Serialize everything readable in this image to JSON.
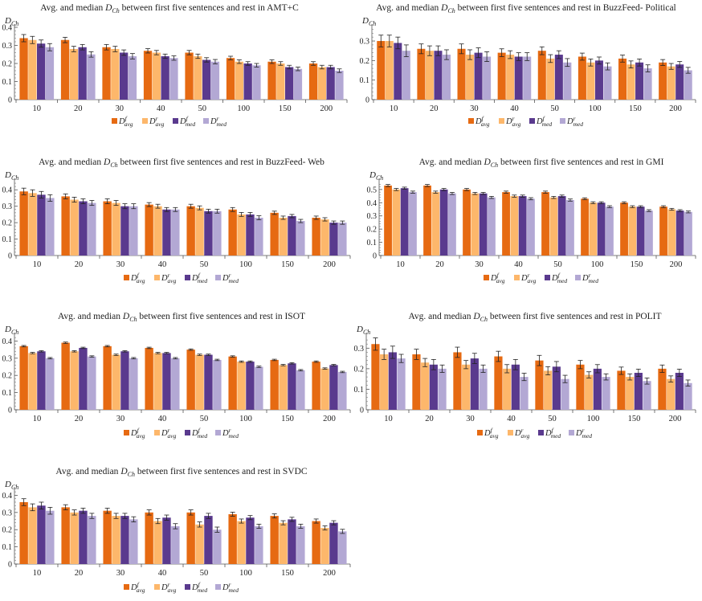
{
  "legend": {
    "labels": [
      {
        "base": "D",
        "sup": "f",
        "sub": "avg"
      },
      {
        "base": "D",
        "sup": "r",
        "sub": "avg"
      },
      {
        "base": "D",
        "sup": "f",
        "sub": "med"
      },
      {
        "base": "D",
        "sup": "r",
        "sub": "med"
      }
    ],
    "colors": [
      "#E66A12",
      "#FDB76B",
      "#5A3A8E",
      "#B3A8D4"
    ]
  },
  "chart_data": [
    {
      "type": "bar",
      "title": "Avg. and median D_Ch between first five sentences and rest in AMT+C",
      "title_parts": {
        "prefix": "Avg. and median ",
        "var": "D",
        "var_sub": "Ch",
        "suffix": " between first five sentences and rest in AMT+C"
      },
      "ylabel": {
        "base": "D",
        "sub": "Ch"
      },
      "categories": [
        "10",
        "20",
        "30",
        "40",
        "50",
        "100",
        "150",
        "200"
      ],
      "yticks": [
        "0",
        "0.1",
        "0.2",
        "0.3",
        "0.4"
      ],
      "ylim": [
        0,
        0.4
      ],
      "series": [
        {
          "name": "D^f_avg",
          "values": [
            0.34,
            0.33,
            0.29,
            0.27,
            0.26,
            0.23,
            0.21,
            0.2
          ],
          "err": [
            0.02,
            0.015,
            0.015,
            0.012,
            0.012,
            0.01,
            0.01,
            0.01
          ]
        },
        {
          "name": "D^r_avg",
          "values": [
            0.33,
            0.28,
            0.28,
            0.26,
            0.24,
            0.21,
            0.2,
            0.18
          ],
          "err": [
            0.02,
            0.015,
            0.015,
            0.012,
            0.012,
            0.01,
            0.01,
            0.01
          ]
        },
        {
          "name": "D^f_med",
          "values": [
            0.31,
            0.29,
            0.26,
            0.24,
            0.22,
            0.2,
            0.18,
            0.18
          ],
          "err": [
            0.02,
            0.015,
            0.015,
            0.012,
            0.012,
            0.01,
            0.01,
            0.01
          ]
        },
        {
          "name": "D^r_med",
          "values": [
            0.29,
            0.25,
            0.24,
            0.23,
            0.21,
            0.19,
            0.17,
            0.16
          ],
          "err": [
            0.02,
            0.015,
            0.015,
            0.012,
            0.012,
            0.01,
            0.01,
            0.01
          ]
        }
      ]
    },
    {
      "type": "bar",
      "title": "Avg. and median D_Ch between first five sentences and rest in BuzzFeed- Political",
      "title_parts": {
        "prefix": "Avg. and median ",
        "var": "D",
        "var_sub": "Ch",
        "suffix": " between first five sentences and rest in BuzzFeed- Political"
      },
      "ylabel": {
        "base": "D",
        "sub": "Ch"
      },
      "categories": [
        "10",
        "20",
        "30",
        "40",
        "50",
        "100",
        "150",
        "200"
      ],
      "yticks": [
        "0",
        "0.1",
        "0.2",
        "0.3"
      ],
      "ylim": [
        0,
        0.37
      ],
      "series": [
        {
          "name": "D^f_avg",
          "values": [
            0.3,
            0.26,
            0.26,
            0.24,
            0.25,
            0.22,
            0.21,
            0.19
          ],
          "err": [
            0.03,
            0.025,
            0.025,
            0.02,
            0.02,
            0.018,
            0.018,
            0.015
          ]
        },
        {
          "name": "D^r_avg",
          "values": [
            0.3,
            0.25,
            0.23,
            0.23,
            0.21,
            0.19,
            0.18,
            0.17
          ],
          "err": [
            0.03,
            0.025,
            0.025,
            0.02,
            0.02,
            0.018,
            0.018,
            0.015
          ]
        },
        {
          "name": "D^f_med",
          "values": [
            0.29,
            0.25,
            0.24,
            0.22,
            0.23,
            0.2,
            0.19,
            0.18
          ],
          "err": [
            0.03,
            0.025,
            0.025,
            0.02,
            0.02,
            0.018,
            0.018,
            0.015
          ]
        },
        {
          "name": "D^r_med",
          "values": [
            0.25,
            0.23,
            0.22,
            0.22,
            0.19,
            0.17,
            0.16,
            0.15
          ],
          "err": [
            0.03,
            0.025,
            0.025,
            0.02,
            0.02,
            0.018,
            0.018,
            0.015
          ]
        }
      ]
    },
    {
      "type": "bar",
      "title": "Avg. and median D_Ch between first five sentences and rest in BuzzFeed- Web",
      "title_parts": {
        "prefix": "Avg. and median ",
        "var": "D",
        "var_sub": "Ch",
        "suffix": " between first five sentences and rest in BuzzFeed- Web"
      },
      "ylabel": {
        "base": "D",
        "sub": "Ch"
      },
      "categories": [
        "10",
        "20",
        "30",
        "40",
        "50",
        "100",
        "150",
        "200"
      ],
      "yticks": [
        "0",
        "0.1",
        "0.2",
        "0.3",
        "0.4"
      ],
      "ylim": [
        0,
        0.45
      ],
      "series": [
        {
          "name": "D^f_avg",
          "values": [
            0.39,
            0.36,
            0.33,
            0.31,
            0.3,
            0.28,
            0.26,
            0.23
          ],
          "err": [
            0.02,
            0.015,
            0.015,
            0.012,
            0.012,
            0.012,
            0.01,
            0.01
          ]
        },
        {
          "name": "D^r_avg",
          "values": [
            0.38,
            0.34,
            0.32,
            0.3,
            0.29,
            0.25,
            0.23,
            0.22
          ],
          "err": [
            0.02,
            0.015,
            0.015,
            0.012,
            0.012,
            0.012,
            0.01,
            0.01
          ]
        },
        {
          "name": "D^f_med",
          "values": [
            0.37,
            0.33,
            0.3,
            0.28,
            0.27,
            0.25,
            0.24,
            0.2
          ],
          "err": [
            0.02,
            0.015,
            0.015,
            0.012,
            0.012,
            0.012,
            0.01,
            0.01
          ]
        },
        {
          "name": "D^r_med",
          "values": [
            0.35,
            0.32,
            0.3,
            0.28,
            0.27,
            0.23,
            0.21,
            0.2
          ],
          "err": [
            0.02,
            0.015,
            0.015,
            0.012,
            0.012,
            0.012,
            0.01,
            0.01
          ]
        }
      ]
    },
    {
      "type": "bar",
      "title": "Avg. and median D_Ch between first five sentences and rest in GMI",
      "title_parts": {
        "prefix": "Avg. and median ",
        "var": "D",
        "var_sub": "Ch",
        "suffix": " between first five sentences and rest in GMI"
      },
      "ylabel": {
        "base": "D",
        "sub": "Ch"
      },
      "categories": [
        "10",
        "20",
        "30",
        "40",
        "50",
        "100",
        "150",
        "200"
      ],
      "yticks": [
        "0",
        "0.1",
        "0.2",
        "0.3",
        "0.4",
        "0.5"
      ],
      "ylim": [
        0,
        0.56
      ],
      "series": [
        {
          "name": "D^f_avg",
          "values": [
            0.53,
            0.53,
            0.5,
            0.48,
            0.48,
            0.43,
            0.4,
            0.37
          ],
          "err": [
            0.008,
            0.008,
            0.008,
            0.008,
            0.008,
            0.007,
            0.007,
            0.007
          ]
        },
        {
          "name": "D^r_avg",
          "values": [
            0.5,
            0.48,
            0.47,
            0.45,
            0.44,
            0.4,
            0.37,
            0.35
          ],
          "err": [
            0.008,
            0.008,
            0.008,
            0.008,
            0.008,
            0.007,
            0.007,
            0.007
          ]
        },
        {
          "name": "D^f_med",
          "values": [
            0.51,
            0.5,
            0.47,
            0.45,
            0.45,
            0.4,
            0.37,
            0.34
          ],
          "err": [
            0.008,
            0.008,
            0.008,
            0.008,
            0.008,
            0.007,
            0.007,
            0.007
          ]
        },
        {
          "name": "D^r_med",
          "values": [
            0.48,
            0.47,
            0.44,
            0.43,
            0.42,
            0.37,
            0.34,
            0.33
          ],
          "err": [
            0.008,
            0.008,
            0.008,
            0.008,
            0.008,
            0.007,
            0.007,
            0.007
          ]
        }
      ]
    },
    {
      "type": "bar",
      "title": "Avg. and median D_Ch between first five sentences and rest in ISOT",
      "title_parts": {
        "prefix": "Avg. and median ",
        "var": "D",
        "var_sub": "Ch",
        "suffix": " between first five sentences and rest in ISOT"
      },
      "ylabel": {
        "base": "D",
        "sub": "Ch"
      },
      "categories": [
        "10",
        "20",
        "30",
        "40",
        "50",
        "100",
        "150",
        "200"
      ],
      "yticks": [
        "0",
        "0.1",
        "0.2",
        "0.3",
        "0.4"
      ],
      "ylim": [
        0,
        0.43
      ],
      "series": [
        {
          "name": "D^f_avg",
          "values": [
            0.37,
            0.39,
            0.37,
            0.36,
            0.35,
            0.31,
            0.29,
            0.28
          ],
          "err": [
            0.004,
            0.004,
            0.004,
            0.004,
            0.004,
            0.004,
            0.004,
            0.004
          ]
        },
        {
          "name": "D^r_avg",
          "values": [
            0.33,
            0.34,
            0.32,
            0.33,
            0.32,
            0.28,
            0.26,
            0.24
          ],
          "err": [
            0.004,
            0.004,
            0.004,
            0.004,
            0.004,
            0.004,
            0.004,
            0.004
          ]
        },
        {
          "name": "D^f_med",
          "values": [
            0.34,
            0.36,
            0.34,
            0.33,
            0.32,
            0.28,
            0.27,
            0.26
          ],
          "err": [
            0.004,
            0.004,
            0.004,
            0.004,
            0.004,
            0.004,
            0.004,
            0.004
          ]
        },
        {
          "name": "D^r_med",
          "values": [
            0.3,
            0.31,
            0.3,
            0.3,
            0.29,
            0.25,
            0.23,
            0.22
          ],
          "err": [
            0.004,
            0.004,
            0.004,
            0.004,
            0.004,
            0.004,
            0.004,
            0.004
          ]
        }
      ]
    },
    {
      "type": "bar",
      "title": "Avg. and median D_Ch between first five sentences and rest in POLIT",
      "title_parts": {
        "prefix": "Avg. and median ",
        "var": "D",
        "var_sub": "Ch",
        "suffix": " between first five sentences and rest in POLIT"
      },
      "ylabel": {
        "base": "D",
        "sub": "Ch"
      },
      "categories": [
        "10",
        "20",
        "30",
        "40",
        "50",
        "100",
        "150",
        "200"
      ],
      "yticks": [
        "0",
        "0.1",
        "0.2",
        "0.3"
      ],
      "ylim": [
        0,
        0.36
      ],
      "series": [
        {
          "name": "D^f_avg",
          "values": [
            0.32,
            0.27,
            0.28,
            0.26,
            0.24,
            0.22,
            0.19,
            0.2
          ],
          "err": [
            0.03,
            0.025,
            0.025,
            0.025,
            0.025,
            0.02,
            0.018,
            0.018
          ]
        },
        {
          "name": "D^r_avg",
          "values": [
            0.27,
            0.23,
            0.22,
            0.2,
            0.19,
            0.17,
            0.16,
            0.15
          ],
          "err": [
            0.025,
            0.02,
            0.02,
            0.02,
            0.02,
            0.015,
            0.015,
            0.015
          ]
        },
        {
          "name": "D^f_med",
          "values": [
            0.28,
            0.22,
            0.25,
            0.22,
            0.21,
            0.2,
            0.18,
            0.18
          ],
          "err": [
            0.03,
            0.025,
            0.025,
            0.025,
            0.025,
            0.02,
            0.018,
            0.018
          ]
        },
        {
          "name": "D^r_med",
          "values": [
            0.25,
            0.2,
            0.2,
            0.16,
            0.15,
            0.16,
            0.14,
            0.13
          ],
          "err": [
            0.02,
            0.018,
            0.018,
            0.018,
            0.018,
            0.015,
            0.015,
            0.015
          ]
        }
      ]
    },
    {
      "type": "bar",
      "title": "Avg. and median D_Ch between first five sentences and rest in SVDC",
      "title_parts": {
        "prefix": "Avg. and median ",
        "var": "D",
        "var_sub": "Ch",
        "suffix": " between first five sentences and rest in SVDC"
      },
      "ylabel": {
        "base": "D",
        "sub": "Ch"
      },
      "categories": [
        "10",
        "20",
        "30",
        "40",
        "50",
        "100",
        "150",
        "200"
      ],
      "yticks": [
        "0",
        "0.1",
        "0.2",
        "0.3",
        "0.4"
      ],
      "ylim": [
        0,
        0.43
      ],
      "series": [
        {
          "name": "D^f_avg",
          "values": [
            0.36,
            0.33,
            0.31,
            0.3,
            0.3,
            0.29,
            0.28,
            0.25
          ],
          "err": [
            0.02,
            0.015,
            0.015,
            0.015,
            0.015,
            0.012,
            0.012,
            0.012
          ]
        },
        {
          "name": "D^r_avg",
          "values": [
            0.33,
            0.3,
            0.28,
            0.25,
            0.23,
            0.25,
            0.24,
            0.21
          ],
          "err": [
            0.02,
            0.015,
            0.015,
            0.015,
            0.015,
            0.012,
            0.012,
            0.012
          ]
        },
        {
          "name": "D^f_med",
          "values": [
            0.34,
            0.31,
            0.28,
            0.27,
            0.28,
            0.27,
            0.26,
            0.24
          ],
          "err": [
            0.02,
            0.015,
            0.015,
            0.015,
            0.015,
            0.012,
            0.012,
            0.012
          ]
        },
        {
          "name": "D^r_med",
          "values": [
            0.31,
            0.28,
            0.26,
            0.22,
            0.2,
            0.22,
            0.22,
            0.19
          ],
          "err": [
            0.02,
            0.015,
            0.015,
            0.015,
            0.015,
            0.012,
            0.012,
            0.012
          ]
        }
      ]
    }
  ]
}
